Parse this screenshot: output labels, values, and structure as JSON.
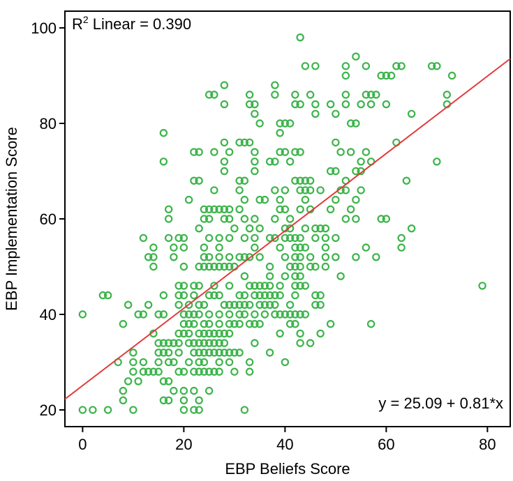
{
  "chart_data": {
    "type": "scatter",
    "xlabel": "EBP Beliefs Score",
    "ylabel": "EBP Implementation Score",
    "xlim": [
      -3.5,
      84.5
    ],
    "ylim": [
      16.5,
      103.5
    ],
    "xticks": [
      0,
      20,
      40,
      60,
      80
    ],
    "yticks": [
      20,
      40,
      60,
      80,
      100
    ],
    "annotations": {
      "r2_prefix": "R",
      "r2_sup": "2",
      "r2_suffix": " Linear = 0.390",
      "equation": "y = 25.09 + 0.81*x"
    },
    "fit_line": {
      "intercept": 25.09,
      "slope": 0.81
    },
    "colors": {
      "points": "#3cb44b",
      "fit": "#e03c3c",
      "axis": "#000000"
    },
    "points": [
      [
        0,
        40
      ],
      [
        0,
        20
      ],
      [
        2,
        20
      ],
      [
        4,
        44
      ],
      [
        5,
        44
      ],
      [
        5,
        20
      ],
      [
        7,
        30
      ],
      [
        8,
        38
      ],
      [
        8,
        24
      ],
      [
        8,
        22
      ],
      [
        9,
        42
      ],
      [
        9,
        26
      ],
      [
        10,
        32
      ],
      [
        10,
        30
      ],
      [
        10,
        28
      ],
      [
        10,
        20
      ],
      [
        11,
        40
      ],
      [
        11,
        26
      ],
      [
        12,
        40
      ],
      [
        12,
        56
      ],
      [
        12,
        30
      ],
      [
        12,
        28
      ],
      [
        13,
        52
      ],
      [
        13,
        42
      ],
      [
        13,
        28
      ],
      [
        14,
        54
      ],
      [
        14,
        52
      ],
      [
        14,
        50
      ],
      [
        14,
        36
      ],
      [
        14,
        28
      ],
      [
        15,
        40
      ],
      [
        15,
        34
      ],
      [
        15,
        32
      ],
      [
        15,
        30
      ],
      [
        15,
        28
      ],
      [
        16,
        78
      ],
      [
        16,
        72
      ],
      [
        16,
        44
      ],
      [
        16,
        40
      ],
      [
        16,
        34
      ],
      [
        16,
        32
      ],
      [
        16,
        26
      ],
      [
        16,
        22
      ],
      [
        17,
        62
      ],
      [
        17,
        60
      ],
      [
        17,
        56
      ],
      [
        17,
        34
      ],
      [
        17,
        32
      ],
      [
        17,
        30
      ],
      [
        17,
        26
      ],
      [
        17,
        22
      ],
      [
        18,
        54
      ],
      [
        18,
        52
      ],
      [
        18,
        34
      ],
      [
        18,
        30
      ],
      [
        18,
        24
      ],
      [
        19,
        56
      ],
      [
        19,
        46
      ],
      [
        19,
        44
      ],
      [
        19,
        42
      ],
      [
        19,
        36
      ],
      [
        19,
        34
      ],
      [
        19,
        32
      ],
      [
        19,
        28
      ],
      [
        20,
        56
      ],
      [
        20,
        54
      ],
      [
        20,
        50
      ],
      [
        20,
        46
      ],
      [
        20,
        44
      ],
      [
        20,
        40
      ],
      [
        20,
        38
      ],
      [
        20,
        36
      ],
      [
        20,
        28
      ],
      [
        20,
        24
      ],
      [
        20,
        22
      ],
      [
        20,
        20
      ],
      [
        21,
        64
      ],
      [
        21,
        42
      ],
      [
        21,
        40
      ],
      [
        21,
        38
      ],
      [
        21,
        36
      ],
      [
        21,
        34
      ],
      [
        21,
        30
      ],
      [
        22,
        74
      ],
      [
        22,
        68
      ],
      [
        22,
        46
      ],
      [
        22,
        44
      ],
      [
        22,
        40
      ],
      [
        22,
        38
      ],
      [
        22,
        34
      ],
      [
        22,
        32
      ],
      [
        22,
        28
      ],
      [
        22,
        24
      ],
      [
        22,
        20
      ],
      [
        23,
        74
      ],
      [
        23,
        68
      ],
      [
        23,
        58
      ],
      [
        23,
        50
      ],
      [
        23,
        46
      ],
      [
        23,
        42
      ],
      [
        23,
        40
      ],
      [
        23,
        36
      ],
      [
        23,
        34
      ],
      [
        23,
        32
      ],
      [
        23,
        30
      ],
      [
        23,
        28
      ],
      [
        23,
        22
      ],
      [
        23,
        20
      ],
      [
        24,
        62
      ],
      [
        24,
        60
      ],
      [
        24,
        54
      ],
      [
        24,
        52
      ],
      [
        24,
        50
      ],
      [
        24,
        42
      ],
      [
        24,
        38
      ],
      [
        24,
        36
      ],
      [
        24,
        34
      ],
      [
        24,
        32
      ],
      [
        24,
        30
      ],
      [
        24,
        28
      ],
      [
        25,
        86
      ],
      [
        25,
        62
      ],
      [
        25,
        60
      ],
      [
        25,
        56
      ],
      [
        25,
        52
      ],
      [
        25,
        50
      ],
      [
        25,
        44
      ],
      [
        25,
        40
      ],
      [
        25,
        38
      ],
      [
        25,
        36
      ],
      [
        25,
        34
      ],
      [
        25,
        32
      ],
      [
        25,
        28
      ],
      [
        25,
        24
      ],
      [
        26,
        86
      ],
      [
        26,
        74
      ],
      [
        26,
        66
      ],
      [
        26,
        62
      ],
      [
        26,
        50
      ],
      [
        26,
        46
      ],
      [
        26,
        44
      ],
      [
        26,
        36
      ],
      [
        26,
        34
      ],
      [
        26,
        32
      ],
      [
        26,
        28
      ],
      [
        27,
        62
      ],
      [
        27,
        56
      ],
      [
        27,
        54
      ],
      [
        27,
        52
      ],
      [
        27,
        50
      ],
      [
        27,
        44
      ],
      [
        27,
        40
      ],
      [
        27,
        38
      ],
      [
        27,
        36
      ],
      [
        27,
        34
      ],
      [
        27,
        32
      ],
      [
        27,
        30
      ],
      [
        27,
        28
      ],
      [
        28,
        88
      ],
      [
        28,
        84
      ],
      [
        28,
        76
      ],
      [
        28,
        72
      ],
      [
        28,
        70
      ],
      [
        28,
        62
      ],
      [
        28,
        60
      ],
      [
        28,
        50
      ],
      [
        28,
        42
      ],
      [
        28,
        36
      ],
      [
        28,
        34
      ],
      [
        28,
        32
      ],
      [
        29,
        74
      ],
      [
        29,
        62
      ],
      [
        29,
        60
      ],
      [
        29,
        56
      ],
      [
        29,
        52
      ],
      [
        29,
        50
      ],
      [
        29,
        46
      ],
      [
        29,
        42
      ],
      [
        29,
        40
      ],
      [
        29,
        38
      ],
      [
        29,
        36
      ],
      [
        29,
        32
      ],
      [
        29,
        30
      ],
      [
        30,
        58
      ],
      [
        30,
        50
      ],
      [
        30,
        42
      ],
      [
        30,
        38
      ],
      [
        30,
        32
      ],
      [
        30,
        28
      ],
      [
        31,
        76
      ],
      [
        31,
        68
      ],
      [
        31,
        66
      ],
      [
        31,
        62
      ],
      [
        31,
        52
      ],
      [
        31,
        44
      ],
      [
        31,
        42
      ],
      [
        31,
        40
      ],
      [
        31,
        38
      ],
      [
        31,
        32
      ],
      [
        32,
        76
      ],
      [
        32,
        68
      ],
      [
        32,
        64
      ],
      [
        32,
        60
      ],
      [
        32,
        56
      ],
      [
        32,
        52
      ],
      [
        32,
        48
      ],
      [
        32,
        44
      ],
      [
        32,
        42
      ],
      [
        32,
        40
      ],
      [
        32,
        20
      ],
      [
        33,
        86
      ],
      [
        33,
        84
      ],
      [
        33,
        76
      ],
      [
        33,
        58
      ],
      [
        33,
        52
      ],
      [
        33,
        46
      ],
      [
        33,
        42
      ],
      [
        33,
        38
      ],
      [
        33,
        30
      ],
      [
        33,
        28
      ],
      [
        34,
        84
      ],
      [
        34,
        82
      ],
      [
        34,
        74
      ],
      [
        34,
        72
      ],
      [
        34,
        70
      ],
      [
        34,
        60
      ],
      [
        34,
        56
      ],
      [
        34,
        54
      ],
      [
        34,
        46
      ],
      [
        34,
        44
      ],
      [
        34,
        40
      ],
      [
        34,
        38
      ],
      [
        34,
        34
      ],
      [
        35,
        80
      ],
      [
        35,
        64
      ],
      [
        35,
        58
      ],
      [
        35,
        52
      ],
      [
        35,
        46
      ],
      [
        35,
        44
      ],
      [
        35,
        42
      ],
      [
        35,
        38
      ],
      [
        36,
        64
      ],
      [
        36,
        46
      ],
      [
        36,
        44
      ],
      [
        36,
        42
      ],
      [
        36,
        40
      ],
      [
        37,
        72
      ],
      [
        37,
        56
      ],
      [
        37,
        50
      ],
      [
        37,
        48
      ],
      [
        37,
        46
      ],
      [
        37,
        44
      ],
      [
        37,
        42
      ],
      [
        37,
        32
      ],
      [
        38,
        88
      ],
      [
        38,
        86
      ],
      [
        38,
        72
      ],
      [
        38,
        66
      ],
      [
        38,
        60
      ],
      [
        38,
        56
      ],
      [
        38,
        44
      ],
      [
        38,
        42
      ],
      [
        38,
        40
      ],
      [
        39,
        80
      ],
      [
        39,
        78
      ],
      [
        39,
        74
      ],
      [
        39,
        64
      ],
      [
        39,
        62
      ],
      [
        39,
        54
      ],
      [
        39,
        46
      ],
      [
        39,
        44
      ],
      [
        39,
        40
      ],
      [
        39,
        36
      ],
      [
        40,
        80
      ],
      [
        40,
        74
      ],
      [
        40,
        66
      ],
      [
        40,
        62
      ],
      [
        40,
        58
      ],
      [
        40,
        56
      ],
      [
        40,
        52
      ],
      [
        40,
        48
      ],
      [
        40,
        40
      ],
      [
        40,
        30
      ],
      [
        41,
        80
      ],
      [
        41,
        72
      ],
      [
        41,
        60
      ],
      [
        41,
        58
      ],
      [
        41,
        56
      ],
      [
        41,
        50
      ],
      [
        41,
        42
      ],
      [
        41,
        40
      ],
      [
        41,
        38
      ],
      [
        42,
        86
      ],
      [
        42,
        84
      ],
      [
        42,
        74
      ],
      [
        42,
        68
      ],
      [
        42,
        56
      ],
      [
        42,
        54
      ],
      [
        42,
        52
      ],
      [
        42,
        50
      ],
      [
        42,
        48
      ],
      [
        42,
        46
      ],
      [
        42,
        44
      ],
      [
        42,
        40
      ],
      [
        42,
        38
      ],
      [
        43,
        98
      ],
      [
        43,
        84
      ],
      [
        43,
        74
      ],
      [
        43,
        68
      ],
      [
        43,
        66
      ],
      [
        43,
        62
      ],
      [
        43,
        56
      ],
      [
        43,
        54
      ],
      [
        43,
        52
      ],
      [
        43,
        50
      ],
      [
        43,
        48
      ],
      [
        43,
        46
      ],
      [
        43,
        40
      ],
      [
        43,
        36
      ],
      [
        43,
        34
      ],
      [
        44,
        92
      ],
      [
        44,
        68
      ],
      [
        44,
        66
      ],
      [
        44,
        64
      ],
      [
        44,
        58
      ],
      [
        44,
        54
      ],
      [
        44,
        46
      ],
      [
        44,
        40
      ],
      [
        45,
        86
      ],
      [
        45,
        68
      ],
      [
        45,
        66
      ],
      [
        45,
        62
      ],
      [
        45,
        52
      ],
      [
        45,
        50
      ],
      [
        45,
        34
      ],
      [
        46,
        92
      ],
      [
        46,
        84
      ],
      [
        46,
        82
      ],
      [
        46,
        58
      ],
      [
        46,
        56
      ],
      [
        46,
        50
      ],
      [
        46,
        44
      ],
      [
        46,
        42
      ],
      [
        47,
        66
      ],
      [
        47,
        58
      ],
      [
        47,
        44
      ],
      [
        47,
        42
      ],
      [
        47,
        36
      ],
      [
        48,
        58
      ],
      [
        48,
        56
      ],
      [
        48,
        54
      ],
      [
        48,
        52
      ],
      [
        48,
        50
      ],
      [
        49,
        84
      ],
      [
        49,
        70
      ],
      [
        49,
        62
      ],
      [
        49,
        38
      ],
      [
        50,
        82
      ],
      [
        50,
        76
      ],
      [
        50,
        70
      ],
      [
        50,
        64
      ],
      [
        50,
        56
      ],
      [
        50,
        52
      ],
      [
        51,
        74
      ],
      [
        51,
        66
      ],
      [
        51,
        48
      ],
      [
        52,
        92
      ],
      [
        52,
        90
      ],
      [
        52,
        86
      ],
      [
        52,
        84
      ],
      [
        52,
        68
      ],
      [
        52,
        66
      ],
      [
        52,
        60
      ],
      [
        53,
        80
      ],
      [
        53,
        74
      ],
      [
        53,
        62
      ],
      [
        54,
        94
      ],
      [
        54,
        80
      ],
      [
        54,
        70
      ],
      [
        54,
        64
      ],
      [
        54,
        60
      ],
      [
        54,
        52
      ],
      [
        55,
        84
      ],
      [
        55,
        72
      ],
      [
        55,
        70
      ],
      [
        55,
        66
      ],
      [
        56,
        92
      ],
      [
        56,
        86
      ],
      [
        56,
        74
      ],
      [
        56,
        54
      ],
      [
        57,
        86
      ],
      [
        57,
        84
      ],
      [
        57,
        72
      ],
      [
        57,
        38
      ],
      [
        58,
        86
      ],
      [
        58,
        52
      ],
      [
        59,
        90
      ],
      [
        59,
        60
      ],
      [
        60,
        90
      ],
      [
        60,
        60
      ],
      [
        60,
        84
      ],
      [
        61,
        90
      ],
      [
        62,
        92
      ],
      [
        62,
        76
      ],
      [
        63,
        92
      ],
      [
        63,
        56
      ],
      [
        63,
        54
      ],
      [
        64,
        68
      ],
      [
        65,
        82
      ],
      [
        65,
        58
      ],
      [
        69,
        92
      ],
      [
        70,
        92
      ],
      [
        70,
        72
      ],
      [
        72,
        86
      ],
      [
        72,
        84
      ],
      [
        73,
        90
      ],
      [
        79,
        46
      ]
    ]
  }
}
